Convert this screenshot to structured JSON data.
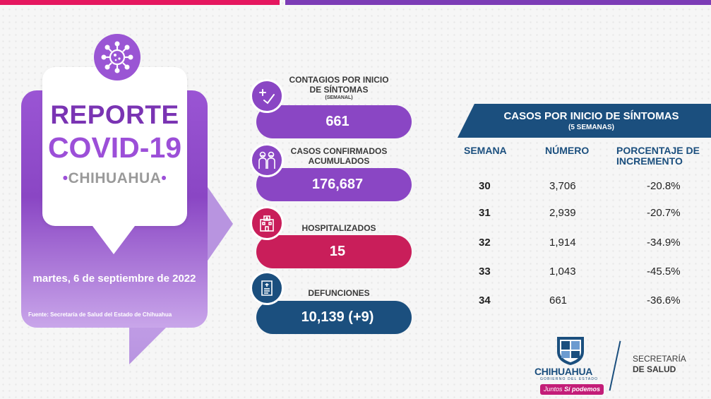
{
  "colors": {
    "purple": "#8a46c4",
    "pink": "#e5175f",
    "crimson": "#c91e5a",
    "navy": "#1b4f7e"
  },
  "report": {
    "title_line1": "REPORTE",
    "title_line2": "COVID-19",
    "region": "CHIHUAHUA",
    "date": "martes, 6 de septiembre de 2022",
    "source": "Fuente: Secretaría de Salud del Estado de Chihuahua"
  },
  "stats": [
    {
      "label": "CONTAGIOS POR INICIO DE SÍNTOMAS",
      "sublabel": "(SEMANAL)",
      "value": "661",
      "icon": "plus-check-icon"
    },
    {
      "label": "CASOS CONFIRMADOS ACUMULADOS",
      "sublabel": "",
      "value": "176,687",
      "icon": "people-masks-icon"
    },
    {
      "label": "HOSPITALIZADOS",
      "sublabel": "",
      "value": "15",
      "icon": "hospital-icon"
    },
    {
      "label": "DEFUNCIONES",
      "sublabel": "",
      "value": "10,139 (+9)",
      "icon": "scroll-document-icon"
    }
  ],
  "table": {
    "title": "CASOS POR INICIO DE SÍNTOMAS",
    "subtitle": "(5 SEMANAS)",
    "headers": [
      "SEMANA",
      "NÚMERO",
      "PORCENTAJE DE INCREMENTO"
    ],
    "rows": [
      {
        "week": "30",
        "number": "3,706",
        "pct": "-20.8%"
      },
      {
        "week": "31",
        "number": "2,939",
        "pct": "-20.7%"
      },
      {
        "week": "32",
        "number": "1,914",
        "pct": "-34.9%"
      },
      {
        "week": "33",
        "number": "1,043",
        "pct": "-45.5%"
      },
      {
        "week": "34",
        "number": "661",
        "pct": "-36.6%"
      }
    ]
  },
  "footer": {
    "gov_name": "CHIHUAHUA",
    "gov_sub": "GOBIERNO DEL ESTADO",
    "slogan_a": "Juntos",
    "slogan_b": "Sí podemos",
    "dept_line1": "SECRETARÍA",
    "dept_line2": "DE SALUD"
  }
}
